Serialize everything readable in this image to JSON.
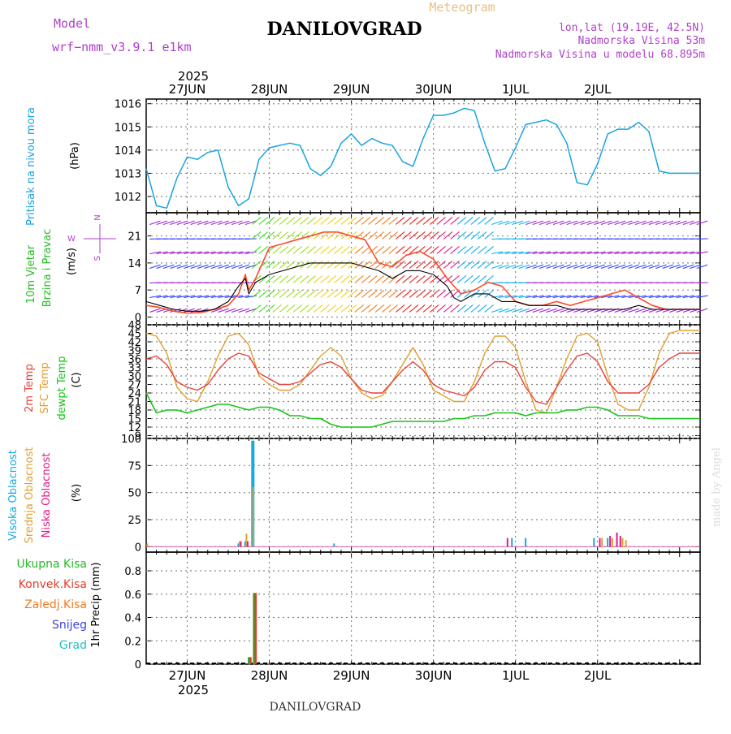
{
  "header": {
    "model_label": "Model",
    "model_name": "wrf−nmm_v3.9.1  e1km",
    "title": "DANILOVGRAD",
    "subtitle": "Meteogram",
    "coords": "lon,lat (19.19E, 42.5N)",
    "altitude": "Nadmorska Visina 53m",
    "model_altitude": "Nadmorska Visina u modelu 68.895m",
    "footer": "DANILOVGRAD",
    "watermark": "made by Angel",
    "year_top": "2025",
    "year_bottom": "2025"
  },
  "days": [
    "27JUN",
    "28JUN",
    "29JUN",
    "30JUN",
    "1JUL",
    "2JUL"
  ],
  "colors": {
    "pressure": "#1aa3e0",
    "wind_speed": "#000000",
    "gust": "#ff4a2a",
    "temp2m": "#e8413a",
    "sfc": "#e0a030",
    "dewpt": "#18c418",
    "cloud_high": "#19a8e0",
    "cloud_mid": "#e0a030",
    "cloud_low": "#e01a8a",
    "precip_total": "#22aa22",
    "precip_conv": "#e83a2a",
    "label_purple": "#b040c8",
    "grid": "#888888"
  },
  "chart_data": [
    {
      "type": "line",
      "panel": "pressure",
      "ylabel_lines": [
        "Pritisak na nivou mora",
        "(hPa)"
      ],
      "yticks": [
        "1012",
        "1013",
        "1014",
        "1015",
        "1016"
      ],
      "ylim": [
        1011.3,
        1016.2
      ],
      "x_unit": "hours from 26JUN 12h",
      "series": [
        {
          "x": [
            0,
            3,
            6,
            9,
            12,
            15,
            18,
            21,
            24,
            27,
            30,
            33,
            36,
            39,
            42,
            45,
            48,
            51,
            54,
            57,
            60,
            63,
            66,
            69,
            72,
            75,
            78,
            81,
            84,
            87,
            90,
            93,
            96,
            99,
            102,
            105,
            108,
            111,
            114,
            117,
            120,
            123,
            126,
            129,
            132,
            135,
            138,
            141,
            144,
            147,
            150,
            153,
            156,
            159,
            162
          ],
          "y": [
            1013.2,
            1011.6,
            1011.5,
            1012.8,
            1013.7,
            1013.6,
            1013.9,
            1014.0,
            1012.4,
            1011.6,
            1011.9,
            1013.6,
            1014.1,
            1014.2,
            1014.3,
            1014.2,
            1013.2,
            1012.9,
            1013.3,
            1014.3,
            1014.7,
            1014.2,
            1014.5,
            1014.3,
            1014.2,
            1013.5,
            1013.3,
            1014.5,
            1015.5,
            1015.5,
            1015.6,
            1015.8,
            1015.7,
            1014.3,
            1013.1,
            1013.2,
            1014.1,
            1015.1,
            1015.2,
            1015.3,
            1015.1,
            1014.3,
            1012.6,
            1012.5,
            1013.4,
            1014.7,
            1014.9,
            1014.9,
            1015.2,
            1014.8,
            1013.1,
            1013.0,
            1013.0,
            1013.0,
            1013.0
          ]
        }
      ]
    },
    {
      "type": "line",
      "panel": "wind",
      "ylabel_lines": [
        "10m Vjetar",
        "Brzina i Pravac",
        "(m/s)"
      ],
      "compass": {
        "n": "N",
        "w": "W",
        "s": "S"
      },
      "yticks": [
        "0",
        "7",
        "14",
        "21"
      ],
      "ylim": [
        -2,
        27
      ],
      "series": [
        {
          "name": "speed",
          "x": [
            0,
            4,
            8,
            12,
            16,
            20,
            24,
            27,
            29,
            30,
            32,
            36,
            40,
            44,
            48,
            52,
            56,
            60,
            64,
            68,
            72,
            76,
            80,
            84,
            88,
            90,
            92,
            96,
            100,
            104,
            108,
            112,
            116,
            120,
            124,
            128,
            132,
            136,
            140,
            144,
            148,
            152,
            156,
            160,
            162
          ],
          "y": [
            4,
            3,
            2,
            1.5,
            1.5,
            2,
            4,
            8,
            10,
            6,
            9,
            11,
            12,
            13,
            14,
            14,
            14,
            14,
            13,
            12,
            10,
            12,
            12,
            11,
            8,
            5,
            4,
            6,
            6,
            4,
            4,
            3,
            3,
            3,
            2,
            2,
            2,
            2,
            2,
            3,
            2,
            2,
            2,
            2,
            2
          ]
        },
        {
          "name": "gust",
          "x": [
            0,
            4,
            8,
            12,
            16,
            20,
            24,
            27,
            29,
            30,
            32,
            36,
            40,
            44,
            48,
            52,
            56,
            60,
            64,
            68,
            72,
            76,
            80,
            84,
            88,
            92,
            96,
            100,
            104,
            108,
            112,
            116,
            120,
            124,
            128,
            132,
            136,
            140,
            144,
            148,
            152,
            156,
            160,
            162
          ],
          "y": [
            3,
            2.5,
            1.5,
            1,
            1.2,
            2,
            3,
            6,
            11,
            7,
            10,
            18,
            19,
            20,
            21,
            22,
            22,
            21,
            20,
            14,
            13,
            16,
            17,
            15,
            10,
            6,
            7,
            9,
            8,
            4,
            3,
            3,
            4,
            3,
            4,
            5,
            6,
            7,
            5,
            3,
            2,
            2,
            2,
            2
          ]
        }
      ]
    },
    {
      "type": "line",
      "panel": "temperature",
      "ylabel_lines": [
        "2m Temp",
        "SFC Temp",
        "dewpt Temp",
        "(C)"
      ],
      "yticks": [
        "9",
        "12",
        "15",
        "18",
        "21",
        "24",
        "27",
        "30",
        "33",
        "36",
        "39",
        "42",
        "45",
        "48"
      ],
      "ylim": [
        8,
        48
      ],
      "series": [
        {
          "name": "2m Temp",
          "x": [
            0,
            3,
            6,
            9,
            12,
            15,
            18,
            21,
            24,
            27,
            30,
            33,
            36,
            39,
            42,
            45,
            48,
            51,
            54,
            57,
            60,
            63,
            66,
            69,
            72,
            75,
            78,
            81,
            84,
            87,
            90,
            93,
            96,
            99,
            102,
            105,
            108,
            111,
            114,
            117,
            120,
            123,
            126,
            129,
            132,
            135,
            138,
            141,
            144,
            147,
            150,
            153,
            156,
            159,
            162
          ],
          "y": [
            36,
            37,
            34,
            28,
            26,
            25,
            27,
            32,
            36,
            38,
            37,
            31,
            29,
            27,
            27,
            28,
            31,
            34,
            35,
            33,
            29,
            25,
            24,
            24,
            28,
            32,
            35,
            32,
            27,
            25,
            24,
            23,
            26,
            32,
            35,
            35,
            33,
            26,
            21,
            20,
            26,
            32,
            37,
            38,
            35,
            28,
            24,
            24,
            24,
            27,
            33,
            36,
            38,
            38,
            38
          ]
        },
        {
          "name": "SFC Temp",
          "x": [
            0,
            3,
            6,
            9,
            12,
            15,
            18,
            21,
            24,
            27,
            30,
            33,
            36,
            39,
            42,
            45,
            48,
            51,
            54,
            57,
            60,
            63,
            66,
            69,
            72,
            75,
            78,
            81,
            84,
            87,
            90,
            93,
            96,
            99,
            102,
            105,
            108,
            111,
            114,
            117,
            120,
            123,
            126,
            129,
            132,
            135,
            138,
            141,
            144,
            147,
            150,
            153,
            156,
            159,
            162
          ],
          "y": [
            45,
            44,
            38,
            26,
            22,
            21,
            28,
            37,
            44,
            45,
            41,
            30,
            27,
            25,
            25,
            27,
            32,
            37,
            40,
            37,
            29,
            24,
            22,
            23,
            28,
            34,
            40,
            34,
            25,
            23,
            21,
            21,
            28,
            38,
            44,
            44,
            40,
            28,
            18,
            17,
            26,
            36,
            44,
            45,
            42,
            30,
            20,
            18,
            18,
            26,
            38,
            45,
            46,
            46,
            46
          ]
        },
        {
          "name": "dewpt Temp",
          "x": [
            0,
            3,
            6,
            9,
            12,
            15,
            18,
            21,
            24,
            27,
            30,
            33,
            36,
            39,
            42,
            45,
            48,
            51,
            54,
            57,
            60,
            63,
            66,
            69,
            72,
            75,
            78,
            81,
            84,
            87,
            90,
            93,
            96,
            99,
            102,
            105,
            108,
            111,
            114,
            117,
            120,
            123,
            126,
            129,
            132,
            135,
            138,
            141,
            144,
            147,
            150,
            153,
            156,
            159,
            162
          ],
          "y": [
            24,
            17,
            18,
            18,
            17,
            18,
            19,
            20,
            20,
            19,
            18,
            19,
            19,
            18,
            16,
            16,
            15,
            15,
            13,
            12,
            12,
            12,
            12,
            13,
            14,
            14,
            14,
            14,
            14,
            14,
            15,
            15,
            16,
            16,
            17,
            17,
            17,
            16,
            17,
            17,
            17,
            18,
            18,
            19,
            19,
            18,
            16,
            16,
            16,
            15,
            15,
            15,
            15,
            15,
            15
          ]
        }
      ]
    },
    {
      "type": "bar",
      "panel": "clouds",
      "ylabel_lines": [
        "Visoka Oblacnost",
        "Srednja Oblacnost",
        "Niska Oblacnost",
        "(%)"
      ],
      "yticks": [
        "0",
        "25",
        "50",
        "75",
        "100"
      ],
      "ylim": [
        -5,
        100
      ],
      "series": [
        {
          "name": "Visoka Oblacnost",
          "x": [
            27,
            29,
            31,
            55,
            107,
            111,
            131,
            135
          ],
          "y": [
            3,
            5,
            98,
            3,
            8,
            8,
            8,
            8
          ]
        },
        {
          "name": "Srednja Oblacnost",
          "x": [
            0,
            27,
            29,
            31,
            133,
            136,
            139,
            140
          ],
          "y": [
            3,
            5,
            12,
            55,
            8,
            8,
            8,
            6
          ]
        },
        {
          "name": "Niska Oblacnost",
          "x": [
            27,
            29,
            105,
            132,
            135,
            137,
            138
          ],
          "y": [
            5,
            5,
            8,
            8,
            10,
            13,
            10
          ]
        }
      ]
    },
    {
      "type": "bar",
      "panel": "precipitation",
      "ylabel_lines": [
        "1hr Precip (mm)"
      ],
      "legend": [
        "Ukupna Kisa",
        "Konvek.Kisa",
        "Zaledj.Kisa",
        "Snijeg",
        "Grad"
      ],
      "yticks": [
        "0",
        "0.2",
        "0.4",
        "0.6",
        "0.8"
      ],
      "ylim": [
        0,
        0.96
      ],
      "series": [
        {
          "name": "Ukupna Kisa",
          "x": [
            30,
            31.5
          ],
          "y": [
            0.06,
            0.61
          ]
        },
        {
          "name": "Konvek.Kisa",
          "x": [
            30.5,
            32
          ],
          "y": [
            0.06,
            0.61
          ]
        }
      ]
    }
  ]
}
